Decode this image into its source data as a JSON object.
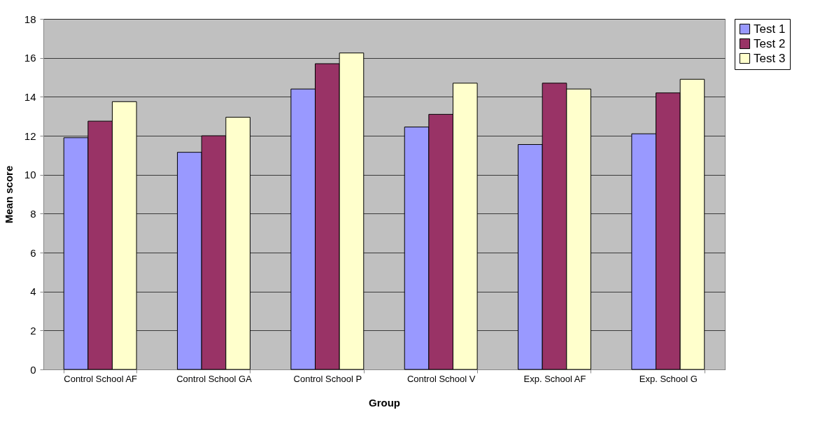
{
  "chart_data": {
    "type": "bar",
    "xlabel": "Group",
    "ylabel": "Mean score",
    "categories": [
      "Control School AF",
      "Control School GA",
      "Control School P",
      "Control School V",
      "Exp. School AF",
      "Exp. School G"
    ],
    "series": [
      {
        "name": "Test 1",
        "color": "#9999ff",
        "values": [
          11.9,
          11.15,
          14.4,
          12.45,
          11.55,
          12.1
        ]
      },
      {
        "name": "Test 2",
        "color": "#993366",
        "values": [
          12.75,
          12.0,
          15.7,
          13.1,
          14.7,
          14.2
        ]
      },
      {
        "name": "Test 3",
        "color": "#ffffcc",
        "values": [
          13.75,
          12.95,
          16.25,
          14.7,
          14.4,
          14.9
        ]
      }
    ],
    "ylim": [
      0,
      18
    ],
    "yticks": [
      0,
      2,
      4,
      6,
      8,
      10,
      12,
      14,
      16,
      18
    ],
    "grid": "y",
    "legend": "right"
  }
}
